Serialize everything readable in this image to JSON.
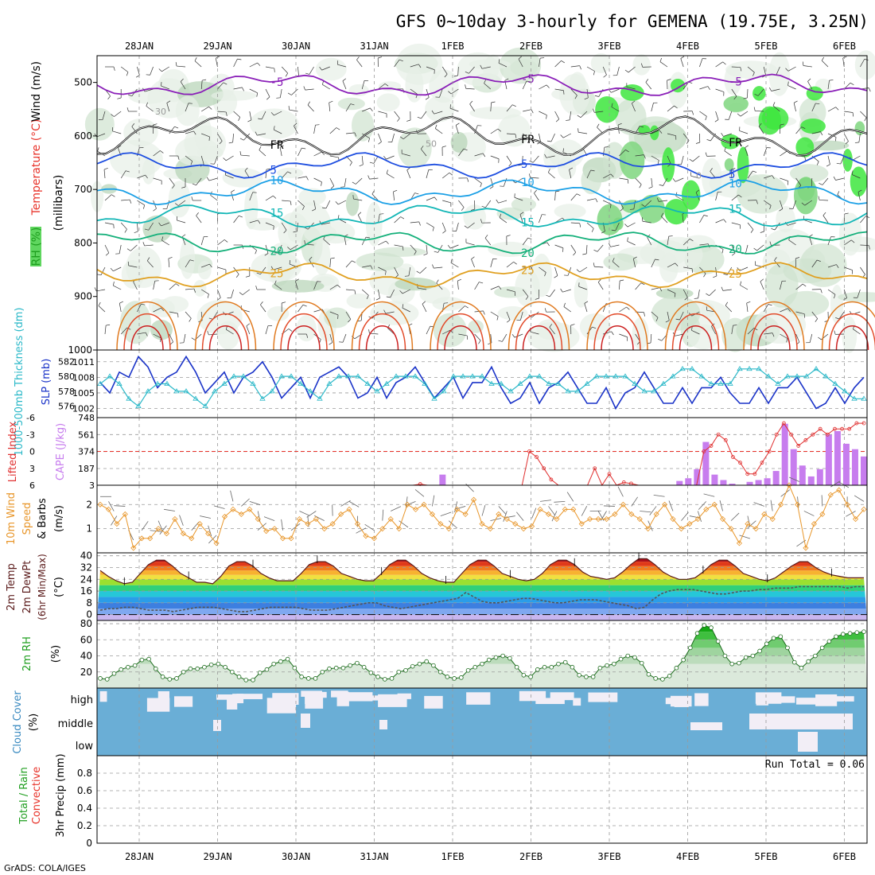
{
  "title": "GFS 0~10day 3-hourly for GEMENA (19.75E, 3.25N)",
  "credit": "GrADS: COLA/IGES",
  "date_labels": [
    "28JAN",
    "29JAN",
    "30JAN",
    "31JAN",
    "1FEB",
    "2FEB",
    "3FEB",
    "4FEB",
    "5FEB",
    "6FEB"
  ],
  "colors": {
    "frame": "#000000",
    "grid": "#9a9a9a",
    "zero_line": "#e8332a",
    "cloud": "#6aaed6",
    "cloud_clear": "#f2eef6"
  },
  "chart_data": [
    {
      "id": "upper_air",
      "type": "heatmap",
      "ylabel_parts": [
        "RH (%)",
        "Temperature (°C)",
        "Wind (m/s)"
      ],
      "ylabel2": "(millibars)",
      "y_ticks": [
        500,
        600,
        700,
        800,
        900,
        1000
      ],
      "ylim": [
        1000,
        450
      ],
      "isotherms": [
        {
          "label": "-5",
          "color": "#8a1fb8",
          "level": 505
        },
        {
          "label": "FR",
          "color": "#000000",
          "level": 600
        },
        {
          "label": "5",
          "color": "#1e4ee0",
          "level": 655
        },
        {
          "label": "10",
          "color": "#1ca0e6",
          "level": 705
        },
        {
          "label": "15",
          "color": "#12b6b6",
          "level": 750
        },
        {
          "label": "20",
          "color": "#14b07a",
          "level": 800
        },
        {
          "label": "25",
          "color": "#e0a020",
          "level": 860
        }
      ],
      "rh_labels": [
        "30",
        "50",
        "0"
      ]
    },
    {
      "id": "thickness_slp",
      "type": "line",
      "ylabel_left": "1000-500mb Thickness (dm)",
      "ylabel_right": "SLP (mb)",
      "thickness_ticks": [
        576,
        578,
        580,
        582
      ],
      "slp_ticks": [
        1002,
        1005,
        1008,
        1011
      ],
      "series": [
        {
          "name": "SLP (mb)",
          "color": "#1a33c8",
          "values": [
            1007,
            1005,
            1009,
            1008,
            1012,
            1010,
            1006,
            1008,
            1009,
            1012,
            1009,
            1005,
            1007,
            1009,
            1005,
            1008,
            1009,
            1011,
            1008,
            1004,
            1006,
            1008,
            1004,
            1008,
            1009,
            1010,
            1008,
            1004,
            1005,
            1008,
            1004,
            1007,
            1008,
            1010,
            1007,
            1004,
            1006,
            1008,
            1004,
            1007,
            1007,
            1010,
            1006,
            1003,
            1004,
            1007,
            1003,
            1006,
            1007,
            1009,
            1006,
            1003,
            1003,
            1006,
            1002,
            1005,
            1006,
            1009,
            1006,
            1003,
            1003,
            1006,
            1003,
            1006,
            1006,
            1008,
            1005,
            1003,
            1003,
            1006,
            1003,
            1006,
            1006,
            1008,
            1005,
            1002,
            1003,
            1006,
            1003,
            1006,
            1008
          ]
        },
        {
          "name": "1000-500mb Thickness (dm)",
          "color": "#2ab8c8",
          "values": [
            579,
            580,
            579,
            577,
            576,
            578,
            579,
            579,
            578,
            578,
            577,
            576,
            578,
            579,
            580,
            580,
            579,
            577,
            578,
            580,
            580,
            579,
            578,
            577,
            579,
            580,
            580,
            580,
            579,
            578,
            579,
            580,
            580,
            580,
            579,
            577,
            578,
            580,
            580,
            580,
            580,
            579,
            579,
            578,
            579,
            580,
            580,
            579,
            579,
            578,
            578,
            579,
            580,
            580,
            580,
            580,
            579,
            578,
            578,
            579,
            580,
            581,
            581,
            580,
            579,
            579,
            579,
            581,
            581,
            581,
            580,
            579,
            580,
            580,
            580,
            581,
            580,
            579,
            578,
            577,
            577
          ]
        }
      ]
    },
    {
      "id": "cape_li",
      "type": "bar",
      "ylabel_left": "Lifted Index",
      "ylabel_right": "CAPE (J/kg)",
      "li_ticks": [
        -6,
        -3,
        0,
        3,
        6
      ],
      "cape_ticks": [
        3,
        187,
        374,
        561,
        748
      ],
      "series": [
        {
          "name": "CAPE (J/kg)",
          "color": "#c77dee",
          "values": [
            0,
            0,
            0,
            0,
            0,
            0,
            0,
            0,
            0,
            0,
            0,
            0,
            0,
            0,
            0,
            0,
            0,
            0,
            0,
            0,
            0,
            0,
            0,
            0,
            0,
            0,
            0,
            0,
            0,
            0,
            0,
            0,
            0,
            0,
            0,
            0,
            0,
            0,
            0,
            120,
            0,
            0,
            0,
            0,
            0,
            0,
            0,
            0,
            0,
            0,
            0,
            0,
            0,
            0,
            0,
            0,
            0,
            0,
            0,
            0,
            0,
            0,
            0,
            0,
            0,
            0,
            50,
            80,
            180,
            480,
            120,
            60,
            20,
            0,
            40,
            60,
            80,
            160,
            680,
            400,
            220,
            100,
            180,
            560,
            600,
            460,
            400,
            320
          ]
        },
        {
          "name": "Lifted Index",
          "color": "#e03030",
          "values": [
            6,
            6,
            6,
            6,
            6,
            6,
            6,
            6,
            6,
            6,
            6,
            6,
            6,
            6,
            6,
            6,
            6,
            6,
            6,
            6,
            6,
            6,
            6,
            6,
            6,
            6,
            6,
            6,
            6,
            6,
            6,
            6,
            6,
            6,
            6,
            6,
            6,
            6,
            6,
            6,
            6,
            6,
            6,
            6,
            5.8,
            6,
            6,
            6,
            6,
            6,
            6,
            6,
            6,
            6,
            6,
            6,
            6,
            6,
            6,
            0,
            1,
            3,
            5,
            6,
            6,
            6,
            6,
            6,
            3,
            6,
            4,
            6,
            5.5,
            5.7,
            6,
            6,
            6,
            6,
            6,
            6,
            6,
            6,
            6,
            0,
            -1,
            -3,
            -2,
            1,
            2,
            4,
            4,
            2,
            0,
            -3,
            -5,
            -3,
            -1,
            -2,
            -3,
            -4,
            -3,
            -4,
            -4,
            -4,
            -5,
            -5
          ]
        }
      ]
    },
    {
      "id": "wind10m",
      "type": "line",
      "ylabel": "10m Wind Speed (m/s) & Barbs",
      "y_ticks": [
        1,
        2
      ],
      "ylim": [
        0,
        2.8
      ],
      "series": [
        {
          "name": "10m Wind Speed",
          "color": "#e8962a",
          "values": [
            2.0,
            1.8,
            1.2,
            1.6,
            0.2,
            0.6,
            0.6,
            1.0,
            0.8,
            1.4,
            0.8,
            0.6,
            1.2,
            0.8,
            0.4,
            1.5,
            1.8,
            1.6,
            1.8,
            1.4,
            0.9,
            1.0,
            0.6,
            0.6,
            1.4,
            1.2,
            1.4,
            1.0,
            1.2,
            1.6,
            1.8,
            1.2,
            0.7,
            0.6,
            1.0,
            1.4,
            1.0,
            2.0,
            1.8,
            2.0,
            1.6,
            1.2,
            1.0,
            1.8,
            1.6,
            2.2,
            1.2,
            1.0,
            1.6,
            1.4,
            1.2,
            1.0,
            1.1,
            1.8,
            1.6,
            1.4,
            1.8,
            1.8,
            1.2,
            1.4,
            1.4,
            1.4,
            1.6,
            2.0,
            1.6,
            1.4,
            1.0,
            1.6,
            2.0,
            1.4,
            1.0,
            1.2,
            1.4,
            1.8,
            2.0,
            1.4,
            1.0,
            0.4,
            1.2,
            1.0,
            1.6,
            1.4,
            2.0,
            2.8,
            2.0,
            0.2,
            1.2,
            1.6,
            2.4,
            2.6,
            2.0,
            1.4,
            1.8
          ]
        }
      ]
    },
    {
      "id": "temp2m",
      "type": "area",
      "ylabel": "2m Temp 2m DewPt (6hr Min/Max) (°C)",
      "y_ticks": [
        0,
        8,
        16,
        24,
        32,
        40
      ],
      "ylim": [
        -4,
        42
      ],
      "series": [
        {
          "name": "2m Temp",
          "color": "#5a1a1a",
          "values": [
            30,
            26,
            23,
            21,
            22,
            28,
            34,
            37,
            37,
            33,
            28,
            25,
            22,
            22,
            21,
            26,
            33,
            36,
            36,
            33,
            28,
            25,
            23,
            23,
            23,
            28,
            34,
            36,
            36,
            33,
            28,
            26,
            24,
            23,
            23,
            28,
            34,
            37,
            37,
            33,
            28,
            25,
            23,
            22,
            22,
            28,
            34,
            37,
            37,
            33,
            28,
            26,
            24,
            23,
            24,
            28,
            34,
            37,
            37,
            34,
            29,
            26,
            25,
            24,
            25,
            29,
            34,
            38,
            38,
            34,
            29,
            26,
            24,
            24,
            25,
            29,
            34,
            37,
            37,
            33,
            28,
            26,
            24,
            23,
            25,
            29,
            33,
            36,
            36,
            32,
            29,
            27,
            26,
            25,
            25,
            25
          ]
        },
        {
          "name": "2m DewPt",
          "color": "#555555",
          "values": [
            3,
            4,
            4,
            5,
            5,
            4,
            3,
            3,
            3,
            2,
            3,
            4,
            5,
            5,
            5,
            4,
            3,
            2,
            2,
            3,
            4,
            5,
            5,
            5,
            5,
            4,
            3,
            3,
            3,
            4,
            5,
            6,
            7,
            8,
            8,
            6,
            5,
            4,
            5,
            6,
            7,
            8,
            9,
            10,
            11,
            15,
            12,
            9,
            8,
            8,
            9,
            10,
            11,
            11,
            10,
            9,
            8,
            8,
            9,
            10,
            10,
            10,
            9,
            8,
            7,
            6,
            4,
            5,
            10,
            14,
            16,
            17,
            17,
            17,
            16,
            15,
            14,
            14,
            15,
            16,
            16,
            17,
            17,
            18,
            18,
            18,
            19,
            19,
            19,
            19,
            19,
            19,
            18,
            19,
            19
          ]
        }
      ]
    },
    {
      "id": "rh2m",
      "type": "area",
      "ylabel": "2m RH (%)",
      "y_ticks": [
        20,
        40,
        60,
        80
      ],
      "ylim": [
        0,
        84
      ],
      "series": [
        {
          "name": "2m RH",
          "color": "#1e9e1e",
          "values": [
            12,
            11,
            18,
            23,
            26,
            28,
            35,
            36,
            24,
            14,
            11,
            12,
            20,
            24,
            24,
            26,
            29,
            30,
            26,
            20,
            14,
            10,
            10,
            19,
            23,
            30,
            33,
            36,
            25,
            14,
            12,
            12,
            20,
            24,
            25,
            25,
            28,
            31,
            26,
            19,
            14,
            11,
            12,
            20,
            22,
            27,
            30,
            33,
            28,
            20,
            14,
            12,
            13,
            22,
            26,
            30,
            35,
            38,
            40,
            37,
            26,
            16,
            14,
            23,
            26,
            26,
            30,
            32,
            26,
            16,
            14,
            14,
            25,
            28,
            30,
            36,
            40,
            38,
            31,
            17,
            12,
            11,
            15,
            25,
            35,
            50,
            68,
            78,
            75,
            58,
            40,
            30,
            31,
            38,
            40,
            46,
            55,
            62,
            64,
            50,
            32,
            25,
            33,
            40,
            50,
            58,
            64,
            67,
            68,
            69,
            70
          ]
        }
      ]
    },
    {
      "id": "cloud",
      "type": "heatmap",
      "ylabel": "Cloud Cover (%)",
      "levels": [
        "high",
        "middle",
        "low"
      ]
    },
    {
      "id": "precip",
      "type": "bar",
      "ylabel_parts": [
        "Total / Rain",
        "Convective"
      ],
      "ylabel2": "3hr Precip (mm)",
      "run_total_label": "Run Total = 0.06",
      "y_ticks": [
        0,
        0.2,
        0.4,
        0.6,
        0.8
      ],
      "ylim": [
        0,
        1.0
      ],
      "series": [
        {
          "name": "Total / Rain",
          "color": "#2ea82e",
          "values": [
            0.06
          ],
          "at_day": 9.7
        },
        {
          "name": "Convective",
          "color": "#e03030",
          "values": [
            0.04
          ],
          "at_day": 9.7
        }
      ]
    }
  ]
}
